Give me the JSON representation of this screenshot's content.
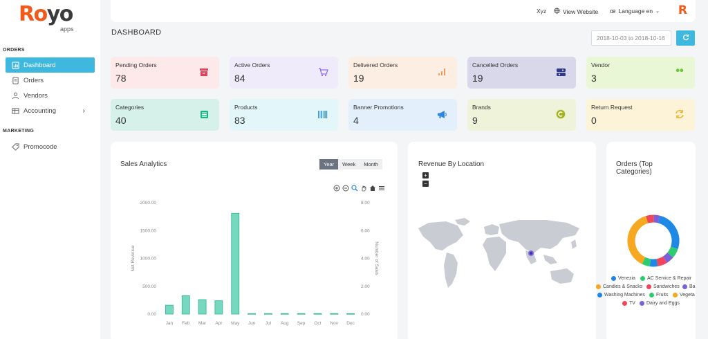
{
  "logo": {
    "word_ro": "Ro",
    "word_yo": "yo",
    "sub": "apps"
  },
  "sidebar": {
    "orders_section": "ORDERS",
    "marketing_section": "MARKETING",
    "items": [
      {
        "label": "Dashboard"
      },
      {
        "label": "Orders"
      },
      {
        "label": "Vendors"
      },
      {
        "label": "Accounting"
      },
      {
        "label": "Promocode"
      }
    ]
  },
  "topbar": {
    "user": "Xyz",
    "view_website": "View Website",
    "language": "Language en",
    "avatar_letter": "R"
  },
  "page_title": "DASHBOARD",
  "date_range": "2018-10-03 to 2018-10-16",
  "stats": [
    {
      "label": "Pending Orders",
      "value": "78",
      "bg": "#fde8ea",
      "icon_color": "#e2415a"
    },
    {
      "label": "Active Orders",
      "value": "84",
      "bg": "#efebfb",
      "icon_color": "#8e6ee6"
    },
    {
      "label": "Delivered Orders",
      "value": "19",
      "bg": "#fdeee3",
      "icon_color": "#f29a5c"
    },
    {
      "label": "Cancelled Orders",
      "value": "19",
      "bg": "#d9d8ea",
      "icon_color": "#2f3a8f"
    },
    {
      "label": "Vendor",
      "value": "3",
      "bg": "#eaf7d6",
      "icon_color": "#6cc63a"
    },
    {
      "label": "Categories",
      "value": "40",
      "bg": "#d5f1ea",
      "icon_color": "#17b57f"
    },
    {
      "label": "Products",
      "value": "83",
      "bg": "#e3f7fb",
      "icon_color": "#2b93c9"
    },
    {
      "label": "Banner Promotions",
      "value": "4",
      "bg": "#e3f0fb",
      "icon_color": "#2f86e0"
    },
    {
      "label": "Brands",
      "value": "9",
      "bg": "#eef3d9",
      "icon_color": "#a3b51b"
    },
    {
      "label": "Return Request",
      "value": "0",
      "bg": "#fdf3d8",
      "icon_color": "#f0b429"
    }
  ],
  "sales": {
    "title": "Sales Analytics",
    "tabs": [
      "Year",
      "Week",
      "Month"
    ],
    "active_tab": "Year"
  },
  "chart_data": {
    "type": "bar",
    "categories": [
      "Jan",
      "Feb",
      "Mar",
      "Apr",
      "May",
      "Jun",
      "Jul",
      "Aug",
      "Sep",
      "Oct",
      "Nov",
      "Dec"
    ],
    "series": [
      {
        "values": [
          160,
          330,
          260,
          240,
          1810,
          10,
          10,
          10,
          10,
          10,
          10,
          10
        ]
      }
    ],
    "ylabel": "Net Revenue",
    "y2label": "Number of Sales",
    "ylim": [
      0,
      2000
    ],
    "y2lim": [
      0,
      8
    ],
    "yticks": [
      "0.00",
      "500.00",
      "1000.00",
      "1500.00",
      "2000.00"
    ],
    "y2ticks": [
      "0.00",
      "2.00",
      "4.00",
      "6.00",
      "8.00"
    ],
    "color": "#5fd1b5"
  },
  "revenue": {
    "title": "Revenue By Location",
    "zoom_in": "+",
    "zoom_out": "−"
  },
  "orders_top": {
    "title_line1": "Orders (Top",
    "title_line2": "Categories)",
    "legend": [
      {
        "label": "Venezia",
        "color": "#1e88e5"
      },
      {
        "label": "AC Service & Repair",
        "color": "#2ecc71"
      },
      {
        "label": "Candies & Snacks",
        "color": "#f6a821"
      },
      {
        "label": "Sandwiches",
        "color": "#f0455b"
      },
      {
        "label": "Ba",
        "color": "#7b61d9"
      },
      {
        "label": "Washing Machines",
        "color": "#1e88e5"
      },
      {
        "label": "Fruits",
        "color": "#2ecc71"
      },
      {
        "label": "Vegeta",
        "color": "#f6a821"
      },
      {
        "label": "TV",
        "color": "#f0455b"
      },
      {
        "label": "Dairy and Eggs",
        "color": "#7b61d9"
      }
    ]
  }
}
